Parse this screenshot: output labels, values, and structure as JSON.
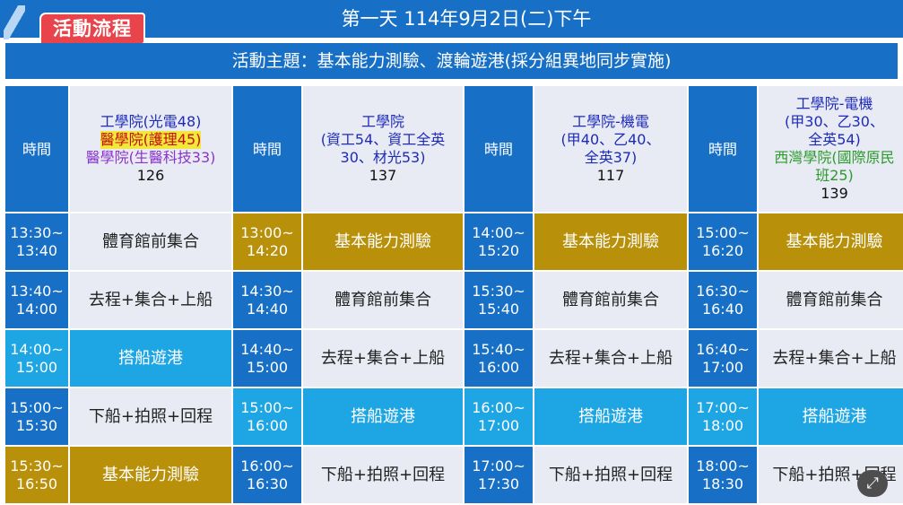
{
  "header": {
    "tag": "活動流程",
    "day_title": "第一天 114年9月2日(二)下午",
    "theme": "活動主題：基本能力測驗、渡輪遊港(採分組異地同步實施)"
  },
  "columns": [
    {
      "time_label": "時間",
      "group_lines": [
        {
          "text": "工學院(光電48)",
          "style": "blue"
        },
        {
          "text": "醫學院(護理45)",
          "style": "red-hl"
        },
        {
          "text": "醫學院(生醫科技33)",
          "style": "purple"
        }
      ],
      "count": "126"
    },
    {
      "time_label": "時間",
      "group_lines": [
        {
          "text": "工學院",
          "style": "blue"
        },
        {
          "text": "(資工54、資工全英",
          "style": "blue"
        },
        {
          "text": "30、材光53)",
          "style": "blue"
        }
      ],
      "count": "137"
    },
    {
      "time_label": "時間",
      "group_lines": [
        {
          "text": "工學院-機電",
          "style": "blue"
        },
        {
          "text": "(甲40、乙40、",
          "style": "blue"
        },
        {
          "text": "全英37)",
          "style": "blue"
        }
      ],
      "count": "117"
    },
    {
      "time_label": "時間",
      "group_lines": [
        {
          "text": "工學院-電機",
          "style": "blue"
        },
        {
          "text": "(甲30、乙30、",
          "style": "blue"
        },
        {
          "text": "全英54)",
          "style": "blue"
        },
        {
          "text": "西灣學院(國際原民",
          "style": "green"
        },
        {
          "text": "班25)",
          "style": "green"
        }
      ],
      "count": "139"
    }
  ],
  "rows": [
    [
      {
        "time": [
          "13:30~",
          "13:40"
        ],
        "time_style": "",
        "activity": "體育館前集合",
        "style": ""
      },
      {
        "time": [
          "13:00~",
          "14:20"
        ],
        "time_style": "gold",
        "activity": "基本能力測驗",
        "style": "gold"
      },
      {
        "time": [
          "14:00~",
          "15:20"
        ],
        "time_style": "",
        "activity": "基本能力測驗",
        "style": "gold"
      },
      {
        "time": [
          "15:00~",
          "16:20"
        ],
        "time_style": "",
        "activity": "基本能力測驗",
        "style": "gold"
      }
    ],
    [
      {
        "time": [
          "13:40~",
          "14:00"
        ],
        "time_style": "",
        "activity": "去程+集合+上船",
        "style": ""
      },
      {
        "time": [
          "14:30~",
          "14:40"
        ],
        "time_style": "",
        "activity": "體育館前集合",
        "style": ""
      },
      {
        "time": [
          "15:30~",
          "15:40"
        ],
        "time_style": "",
        "activity": "體育館前集合",
        "style": ""
      },
      {
        "time": [
          "16:30~",
          "16:40"
        ],
        "time_style": "",
        "activity": "體育館前集合",
        "style": ""
      }
    ],
    [
      {
        "time": [
          "14:00~",
          "15:00"
        ],
        "time_style": "cyan",
        "activity": "搭船遊港",
        "style": "cyan"
      },
      {
        "time": [
          "14:40~",
          "15:00"
        ],
        "time_style": "",
        "activity": "去程+集合+上船",
        "style": ""
      },
      {
        "time": [
          "15:40~",
          "16:00"
        ],
        "time_style": "",
        "activity": "去程+集合+上船",
        "style": ""
      },
      {
        "time": [
          "16:40~",
          "17:00"
        ],
        "time_style": "",
        "activity": "去程+集合+上船",
        "style": ""
      }
    ],
    [
      {
        "time": [
          "15:00~",
          "15:30"
        ],
        "time_style": "",
        "activity": "下船+拍照+回程",
        "style": ""
      },
      {
        "time": [
          "15:00~",
          "16:00"
        ],
        "time_style": "cyan",
        "activity": "搭船遊港",
        "style": "cyan"
      },
      {
        "time": [
          "16:00~",
          "17:00"
        ],
        "time_style": "cyan",
        "activity": "搭船遊港",
        "style": "cyan"
      },
      {
        "time": [
          "17:00~",
          "18:00"
        ],
        "time_style": "cyan",
        "activity": "搭船遊港",
        "style": "cyan"
      }
    ],
    [
      {
        "time": [
          "15:30~",
          "16:50"
        ],
        "time_style": "gold",
        "activity": "基本能力測驗",
        "style": "gold"
      },
      {
        "time": [
          "16:00~",
          "16:30"
        ],
        "time_style": "",
        "activity": "下船+拍照+回程",
        "style": ""
      },
      {
        "time": [
          "17:00~",
          "17:30"
        ],
        "time_style": "",
        "activity": "下船+拍照+回程",
        "style": ""
      },
      {
        "time": [
          "18:00~",
          "18:30"
        ],
        "time_style": "",
        "activity": "下船+拍照+回程",
        "style": ""
      }
    ]
  ],
  "icons": {
    "expand": "expand-icon"
  }
}
